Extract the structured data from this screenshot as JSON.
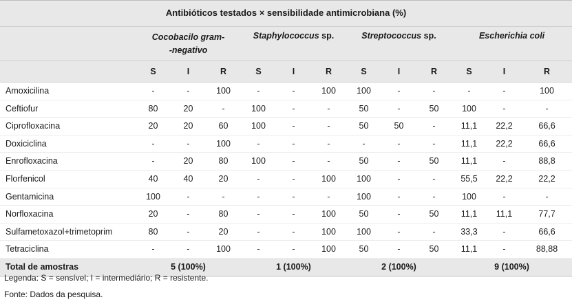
{
  "table": {
    "title": "Antibióticos testados × sensibilidade antimicrobiana (%)",
    "organisms": [
      {
        "name_line1": "Cocobacilo gram-",
        "name_line2": "-negativo"
      },
      {
        "name_line1": "Staphylococcus",
        "name_line2": " sp."
      },
      {
        "name_line1": "Streptococcus",
        "name_line2": " sp."
      },
      {
        "name_line1": "Escherichia coli",
        "name_line2": ""
      }
    ],
    "sir_labels": [
      "S",
      "I",
      "R"
    ],
    "rows": [
      {
        "drug": "Amoxicilina",
        "values": [
          "-",
          "-",
          "100",
          "-",
          "-",
          "100",
          "100",
          "-",
          "-",
          "-",
          "-",
          "100"
        ]
      },
      {
        "drug": "Ceftiofur",
        "values": [
          "80",
          "20",
          "-",
          "100",
          "-",
          "-",
          "50",
          "-",
          "50",
          "100",
          "-",
          "-"
        ]
      },
      {
        "drug": "Ciprofloxacina",
        "values": [
          "20",
          "20",
          "60",
          "100",
          "-",
          "-",
          "50",
          "50",
          "-",
          "11,1",
          "22,2",
          "66,6"
        ]
      },
      {
        "drug": "Doxiciclina",
        "values": [
          "-",
          "-",
          "100",
          "-",
          "-",
          "-",
          "-",
          "-",
          "-",
          "11,1",
          "22,2",
          "66,6"
        ]
      },
      {
        "drug": "Enrofloxacina",
        "values": [
          "-",
          "20",
          "80",
          "100",
          "-",
          "-",
          "50",
          "-",
          "50",
          "11,1",
          "-",
          "88,8"
        ]
      },
      {
        "drug": "Florfenicol",
        "values": [
          "40",
          "40",
          "20",
          "-",
          "-",
          "100",
          "100",
          "-",
          "-",
          "55,5",
          "22,2",
          "22,2"
        ]
      },
      {
        "drug": "Gentamicina",
        "values": [
          "100",
          "-",
          "-",
          "-",
          "-",
          "-",
          "100",
          "-",
          "-",
          "100",
          "-",
          "-"
        ]
      },
      {
        "drug": "Norfloxacina",
        "values": [
          "20",
          "-",
          "80",
          "-",
          "-",
          "100",
          "50",
          "-",
          "50",
          "11,1",
          "11,1",
          "77,7"
        ]
      },
      {
        "drug": "Sulfametoxazol+trimetoprim",
        "values": [
          "80",
          "-",
          "20",
          "-",
          "-",
          "100",
          "100",
          "-",
          "-",
          "33,3",
          "-",
          "66,6"
        ]
      },
      {
        "drug": "Tetraciclina",
        "values": [
          "-",
          "-",
          "100",
          "-",
          "-",
          "100",
          "50",
          "-",
          "50",
          "11,1",
          "-",
          "88,88"
        ]
      }
    ],
    "total_label": "Total de amostras",
    "totals": [
      "5 (100%)",
      "1 (100%)",
      "2 (100%)",
      "9 (100%)"
    ]
  },
  "notes": {
    "legend": "Legenda: S = sensível; I = intermediário; R = resistente.",
    "source": "Fonte: Dados da pesquisa."
  }
}
